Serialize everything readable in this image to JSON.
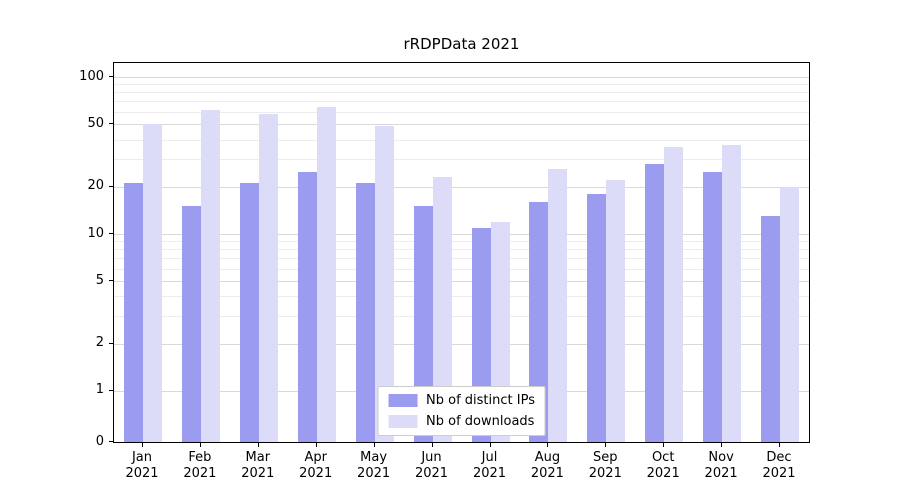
{
  "chart_data": {
    "type": "bar",
    "title": "rRDPData 2021",
    "categories": [
      "Jan",
      "Feb",
      "Mar",
      "Apr",
      "May",
      "Jun",
      "Jul",
      "Aug",
      "Sep",
      "Oct",
      "Nov",
      "Dec"
    ],
    "category_year": "2021",
    "series": [
      {
        "name": "Nb of distinct IPs",
        "color": "#9b9bef",
        "values": [
          21,
          15,
          21,
          25,
          21,
          15,
          11,
          16,
          18,
          28,
          25,
          13
        ]
      },
      {
        "name": "Nb of downloads",
        "color": "#dcdcf8",
        "values": [
          50,
          62,
          58,
          65,
          49,
          23,
          12,
          26,
          22,
          36,
          37,
          20
        ]
      }
    ],
    "yscale": "symlog",
    "yticks": [
      0,
      1,
      2,
      5,
      10,
      20,
      50,
      100
    ],
    "yticks_minor": [
      3,
      4,
      6,
      7,
      8,
      9,
      30,
      40,
      60,
      70,
      80,
      90
    ],
    "ylim": [
      0,
      123
    ],
    "grid": true,
    "legend_position": "lower center",
    "colors": {
      "grid_major": "#d9d9d9",
      "grid_minor": "#ececec",
      "axis": "#000000",
      "legend_border": "#cccccc",
      "background": "#ffffff"
    }
  }
}
